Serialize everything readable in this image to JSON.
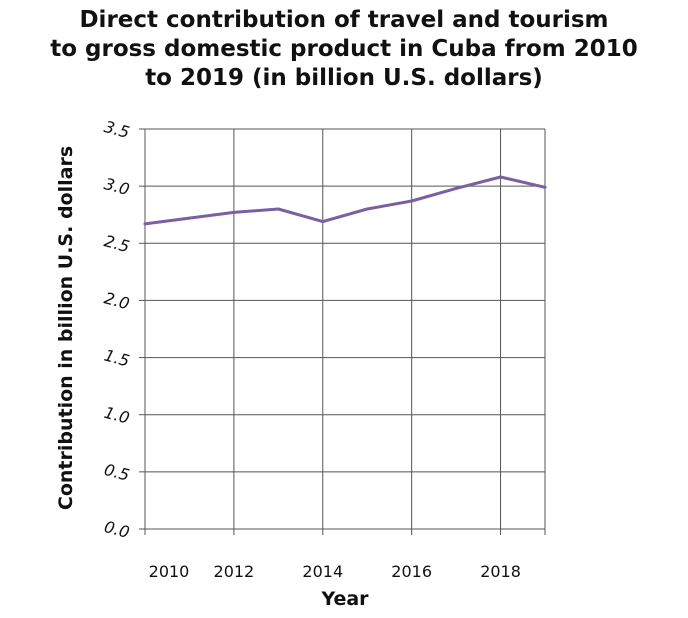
{
  "chart_data": {
    "type": "line",
    "title_lines": [
      "Direct contribution of travel and tourism",
      "to gross domestic product in Cuba from 2010",
      "to 2019 (in billion U.S. dollars)"
    ],
    "xlabel": "Year",
    "ylabel": "Contribution in billion U.S. dollars",
    "x": [
      2010,
      2011,
      2012,
      2013,
      2014,
      2015,
      2016,
      2017,
      2018,
      2019
    ],
    "series": [
      {
        "values": [
          2.67,
          2.72,
          2.77,
          2.8,
          2.69,
          2.8,
          2.87,
          2.98,
          3.08,
          2.99
        ]
      }
    ],
    "xlim": [
      2010,
      2019
    ],
    "ylim": [
      0,
      3.5
    ],
    "x_ticks": [
      "2010",
      "2012",
      "2014",
      "2016",
      "2018"
    ],
    "y_ticks": [
      "0.0",
      "0.5",
      "1.0",
      "1.5",
      "2.0",
      "2.5",
      "3.0",
      "3.5"
    ],
    "grid": true,
    "line_color": "#7b5fa0",
    "grid_color": "#555555"
  }
}
